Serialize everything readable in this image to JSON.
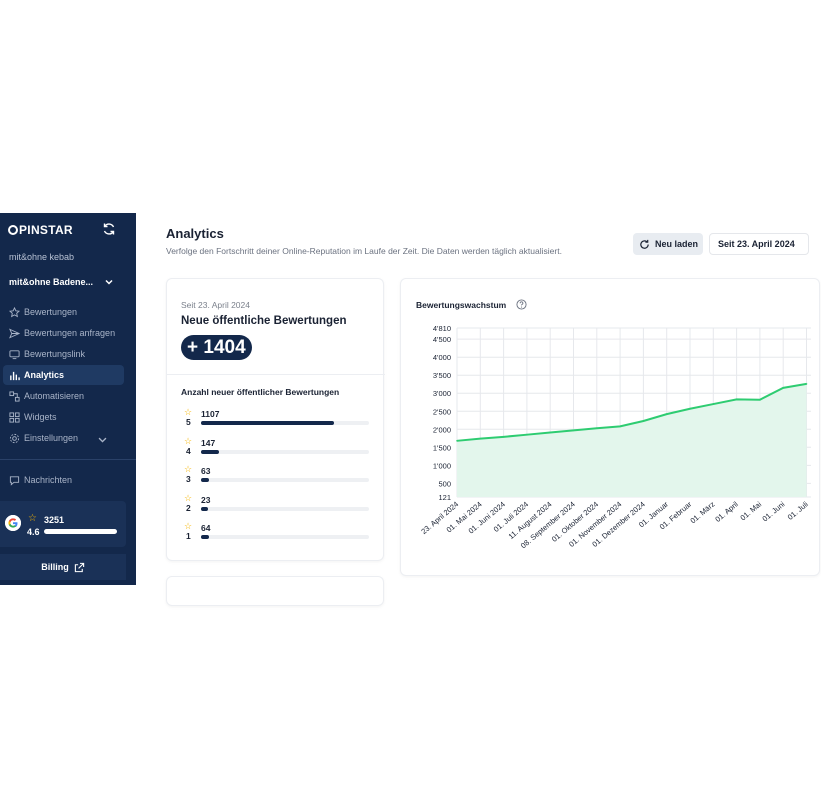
{
  "sidebar": {
    "brand": "PINSTAR",
    "org": "mit&ohne kebab",
    "location": "mit&ohne Badene...",
    "items": [
      {
        "label": "Bewertungen",
        "icon": "star-icon"
      },
      {
        "label": "Bewertungen anfragen",
        "icon": "send-icon"
      },
      {
        "label": "Bewertungslink",
        "icon": "monitor-icon"
      },
      {
        "label": "Analytics",
        "icon": "bar-chart-icon",
        "active": true
      },
      {
        "label": "Automatisieren",
        "icon": "automation-icon"
      },
      {
        "label": "Widgets",
        "icon": "widgets-icon"
      },
      {
        "label": "Einstellungen",
        "icon": "gear-icon"
      }
    ],
    "messages": "Nachrichten",
    "google": {
      "count": "3251",
      "rating": "4.6"
    },
    "billing": "Billing"
  },
  "header": {
    "title": "Analytics",
    "subtitle": "Verfolge den Fortschritt deiner Online-Reputation im Laufe der Zeit. Die Daten werden täglich aktualisiert.",
    "reload": "Neu laden",
    "date": "Seit 23. April 2024"
  },
  "reviews_card": {
    "since": "Seit 23. April 2024",
    "title": "Neue öffentliche Bewertungen",
    "total": "+ 1404",
    "subtitle": "Anzahl neuer öffentlicher Bewertungen",
    "rows": [
      {
        "stars": "5",
        "count": "1107",
        "fraction": 0.79
      },
      {
        "stars": "4",
        "count": "147",
        "fraction": 0.105
      },
      {
        "stars": "3",
        "count": "63",
        "fraction": 0.045
      },
      {
        "stars": "2",
        "count": "23",
        "fraction": 0.02
      },
      {
        "stars": "1",
        "count": "64",
        "fraction": 0.046
      }
    ]
  },
  "colors": {
    "navy": "#13284b",
    "accent": "#2ecc71",
    "area": "#e3f6ec",
    "star": "#f5b400"
  },
  "chart_data": {
    "type": "area",
    "title": "Bewertungswachstum",
    "x": [
      "23. April 2024",
      "01. Mai 2024",
      "01. Juni 2024",
      "01. Juli 2024",
      "11. August 2024",
      "08. September 2024",
      "01. Oktober 2024",
      "01. November 2024",
      "01. Dezember 2024",
      "01. Januar",
      "01. Februar",
      "01. März",
      "01. April",
      "01. Mai",
      "01. Juni",
      "01. Juli"
    ],
    "y": [
      1680,
      1740,
      1790,
      1850,
      1910,
      1970,
      2030,
      2080,
      2230,
      2420,
      2570,
      2700,
      2830,
      2820,
      3150,
      3260
    ],
    "yticks": [
      "4'810",
      "4'500",
      "4'000",
      "3'500",
      "3'000",
      "2'500",
      "2'000",
      "1'500",
      "1'000",
      "500",
      "121"
    ],
    "ytick_values": [
      4810,
      4500,
      4000,
      3500,
      3000,
      2500,
      2000,
      1500,
      1000,
      500,
      121
    ],
    "ylim": [
      121,
      4810
    ],
    "grid": true
  }
}
